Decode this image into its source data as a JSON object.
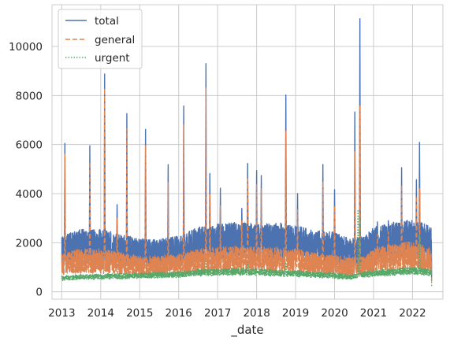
{
  "chart_data": {
    "type": "line",
    "xlabel": "_date",
    "ylabel": "",
    "title": "",
    "xlim": [
      2012.75,
      2022.78
    ],
    "ylim": [
      -300,
      11700
    ],
    "x_ticks": [
      2013,
      2014,
      2015,
      2016,
      2017,
      2018,
      2019,
      2020,
      2021,
      2022
    ],
    "y_ticks": [
      0,
      2000,
      4000,
      6000,
      8000,
      10000
    ],
    "grid": true,
    "legend_position": "top-left",
    "series": [
      {
        "name": "total",
        "color": "#4c72b0",
        "style": "solid",
        "baseline": [
          [
            2013.0,
            1700
          ],
          [
            2013.5,
            1900
          ],
          [
            2014.0,
            1900
          ],
          [
            2014.5,
            1750
          ],
          [
            2015.0,
            1600
          ],
          [
            2015.5,
            1600
          ],
          [
            2016.0,
            1700
          ],
          [
            2016.5,
            1950
          ],
          [
            2017.0,
            2050
          ],
          [
            2017.5,
            2100
          ],
          [
            2018.0,
            2050
          ],
          [
            2018.5,
            2100
          ],
          [
            2019.0,
            2000
          ],
          [
            2019.5,
            1850
          ],
          [
            2020.0,
            1800
          ],
          [
            2020.4,
            1600
          ],
          [
            2020.8,
            1700
          ],
          [
            2021.0,
            1950
          ],
          [
            2021.5,
            2100
          ],
          [
            2022.0,
            2200
          ],
          [
            2022.3,
            2050
          ],
          [
            2022.5,
            1950
          ]
        ],
        "peaks": [
          [
            2013.08,
            6050
          ],
          [
            2013.72,
            5950
          ],
          [
            2014.1,
            8880
          ],
          [
            2014.42,
            3550
          ],
          [
            2014.67,
            7260
          ],
          [
            2015.15,
            6620
          ],
          [
            2015.73,
            5180
          ],
          [
            2016.13,
            7570
          ],
          [
            2016.7,
            9300
          ],
          [
            2016.8,
            4820
          ],
          [
            2017.07,
            4220
          ],
          [
            2017.62,
            3400
          ],
          [
            2017.77,
            5230
          ],
          [
            2018.0,
            4940
          ],
          [
            2018.12,
            4740
          ],
          [
            2018.75,
            8020
          ],
          [
            2019.05,
            4000
          ],
          [
            2019.7,
            5190
          ],
          [
            2020.0,
            4160
          ],
          [
            2020.52,
            7330
          ],
          [
            2020.65,
            11130
          ],
          [
            2021.1,
            2850
          ],
          [
            2021.38,
            2900
          ],
          [
            2021.72,
            5060
          ],
          [
            2022.1,
            4570
          ],
          [
            2022.18,
            6090
          ]
        ]
      },
      {
        "name": "general",
        "color": "#dd8452",
        "style": "dashed",
        "baseline": [
          [
            2013.0,
            1150
          ],
          [
            2013.5,
            1250
          ],
          [
            2014.0,
            1250
          ],
          [
            2014.5,
            1150
          ],
          [
            2015.0,
            1050
          ],
          [
            2015.5,
            1050
          ],
          [
            2016.0,
            1100
          ],
          [
            2016.5,
            1250
          ],
          [
            2017.0,
            1300
          ],
          [
            2017.5,
            1350
          ],
          [
            2018.0,
            1300
          ],
          [
            2018.5,
            1300
          ],
          [
            2019.0,
            1250
          ],
          [
            2019.5,
            1150
          ],
          [
            2020.0,
            1100
          ],
          [
            2020.4,
            1000
          ],
          [
            2020.8,
            1050
          ],
          [
            2021.0,
            1250
          ],
          [
            2021.5,
            1400
          ],
          [
            2022.0,
            1500
          ],
          [
            2022.3,
            1350
          ],
          [
            2022.5,
            1250
          ]
        ],
        "peaks": [
          [
            2013.08,
            5600
          ],
          [
            2013.72,
            5300
          ],
          [
            2014.1,
            8300
          ],
          [
            2014.42,
            3000
          ],
          [
            2014.67,
            6650
          ],
          [
            2015.15,
            5950
          ],
          [
            2015.73,
            4450
          ],
          [
            2016.13,
            6800
          ],
          [
            2016.7,
            8300
          ],
          [
            2016.8,
            4000
          ],
          [
            2017.07,
            3500
          ],
          [
            2017.62,
            2900
          ],
          [
            2017.77,
            4600
          ],
          [
            2018.0,
            4400
          ],
          [
            2018.12,
            4200
          ],
          [
            2018.75,
            6550
          ],
          [
            2019.05,
            3350
          ],
          [
            2019.7,
            4500
          ],
          [
            2020.0,
            3500
          ],
          [
            2020.52,
            5700
          ],
          [
            2020.65,
            7600
          ],
          [
            2021.1,
            2350
          ],
          [
            2021.38,
            2450
          ],
          [
            2021.72,
            4350
          ],
          [
            2022.1,
            3900
          ],
          [
            2022.18,
            4200
          ]
        ]
      },
      {
        "name": "urgent",
        "color": "#55a868",
        "style": "dotted",
        "baseline": [
          [
            2013.0,
            560
          ],
          [
            2013.5,
            600
          ],
          [
            2014.0,
            620
          ],
          [
            2014.5,
            640
          ],
          [
            2015.0,
            660
          ],
          [
            2015.5,
            680
          ],
          [
            2016.0,
            700
          ],
          [
            2016.5,
            780
          ],
          [
            2017.0,
            800
          ],
          [
            2017.5,
            820
          ],
          [
            2018.0,
            800
          ],
          [
            2018.5,
            760
          ],
          [
            2019.0,
            740
          ],
          [
            2019.5,
            700
          ],
          [
            2020.0,
            650
          ],
          [
            2020.4,
            600
          ],
          [
            2020.8,
            700
          ],
          [
            2021.0,
            760
          ],
          [
            2021.5,
            800
          ],
          [
            2022.0,
            860
          ],
          [
            2022.3,
            820
          ],
          [
            2022.5,
            780
          ]
        ],
        "peaks": [
          [
            2016.7,
            1300
          ],
          [
            2017.77,
            1100
          ],
          [
            2018.75,
            1200
          ],
          [
            2020.6,
            3300
          ],
          [
            2020.65,
            3050
          ],
          [
            2022.18,
            2300
          ]
        ]
      }
    ]
  }
}
